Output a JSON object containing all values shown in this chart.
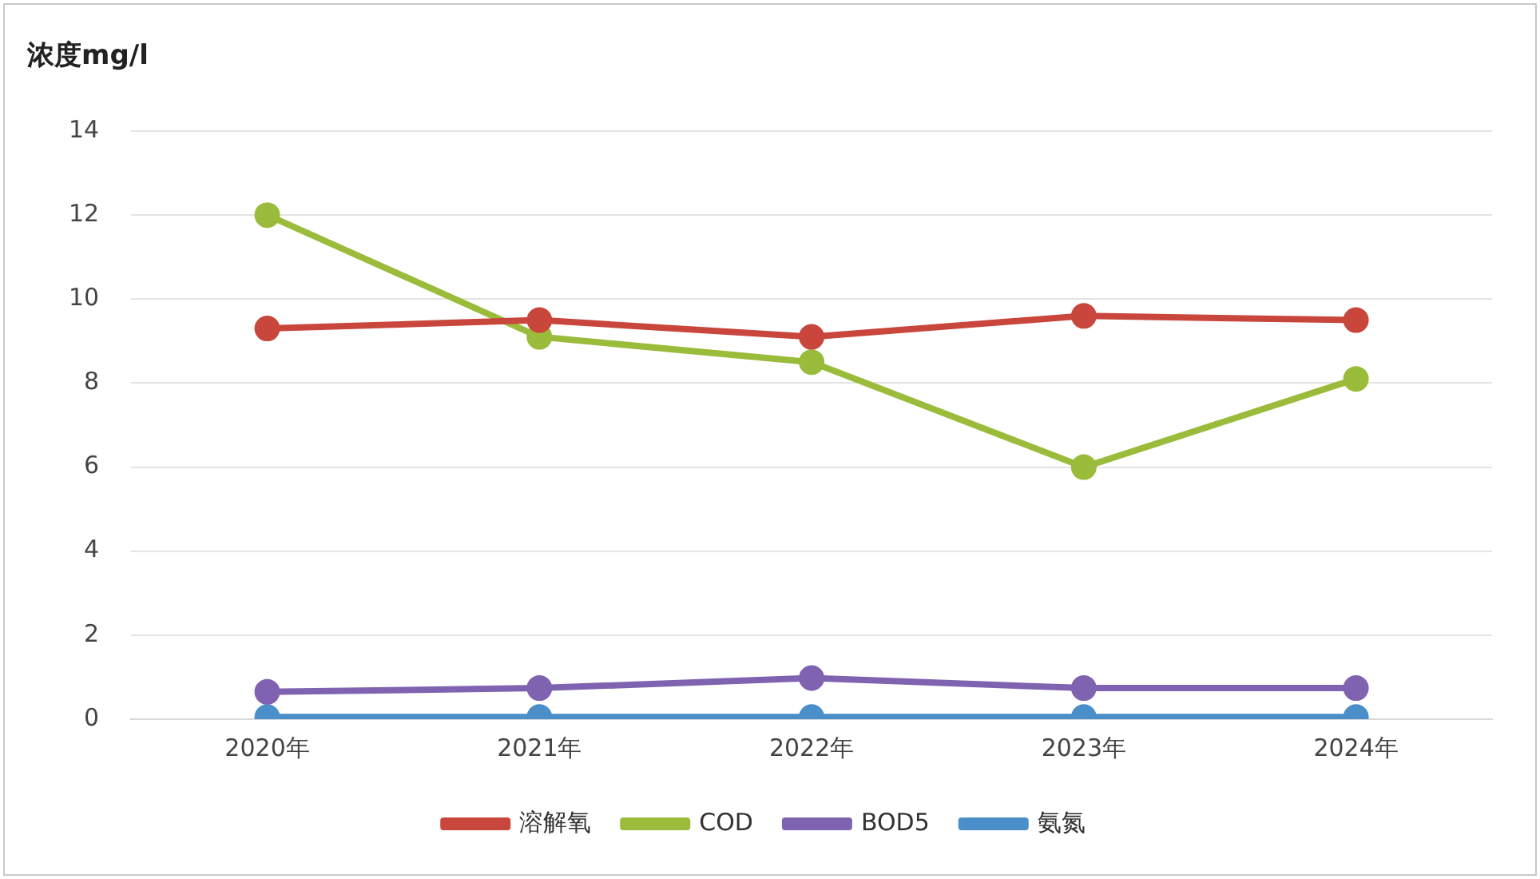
{
  "chart_data": {
    "type": "line",
    "ylabel": "浓度mg/l",
    "categories": [
      "2020年",
      "2021年",
      "2022年",
      "2023年",
      "2024年"
    ],
    "series": [
      {
        "name": "溶解氧",
        "color": "#c9463d",
        "values": [
          9.3,
          9.5,
          9.1,
          9.6,
          9.5
        ]
      },
      {
        "name": "COD",
        "color": "#9bbb3b",
        "values": [
          12.0,
          9.1,
          8.5,
          6.0,
          8.1
        ]
      },
      {
        "name": "BOD5",
        "color": "#7f62b0",
        "values": [
          0.65,
          0.74,
          0.98,
          0.74,
          0.74
        ]
      },
      {
        "name": "氨氮",
        "color": "#4a8fc9",
        "values": [
          0.05,
          0.05,
          0.05,
          0.05,
          0.05
        ]
      }
    ],
    "ylim": [
      0,
      14
    ],
    "yticks": [
      0,
      2,
      4,
      6,
      8,
      10,
      12,
      14
    ],
    "grid": "y",
    "legend": "bottom",
    "marker": "circle",
    "line_style": "solid"
  }
}
